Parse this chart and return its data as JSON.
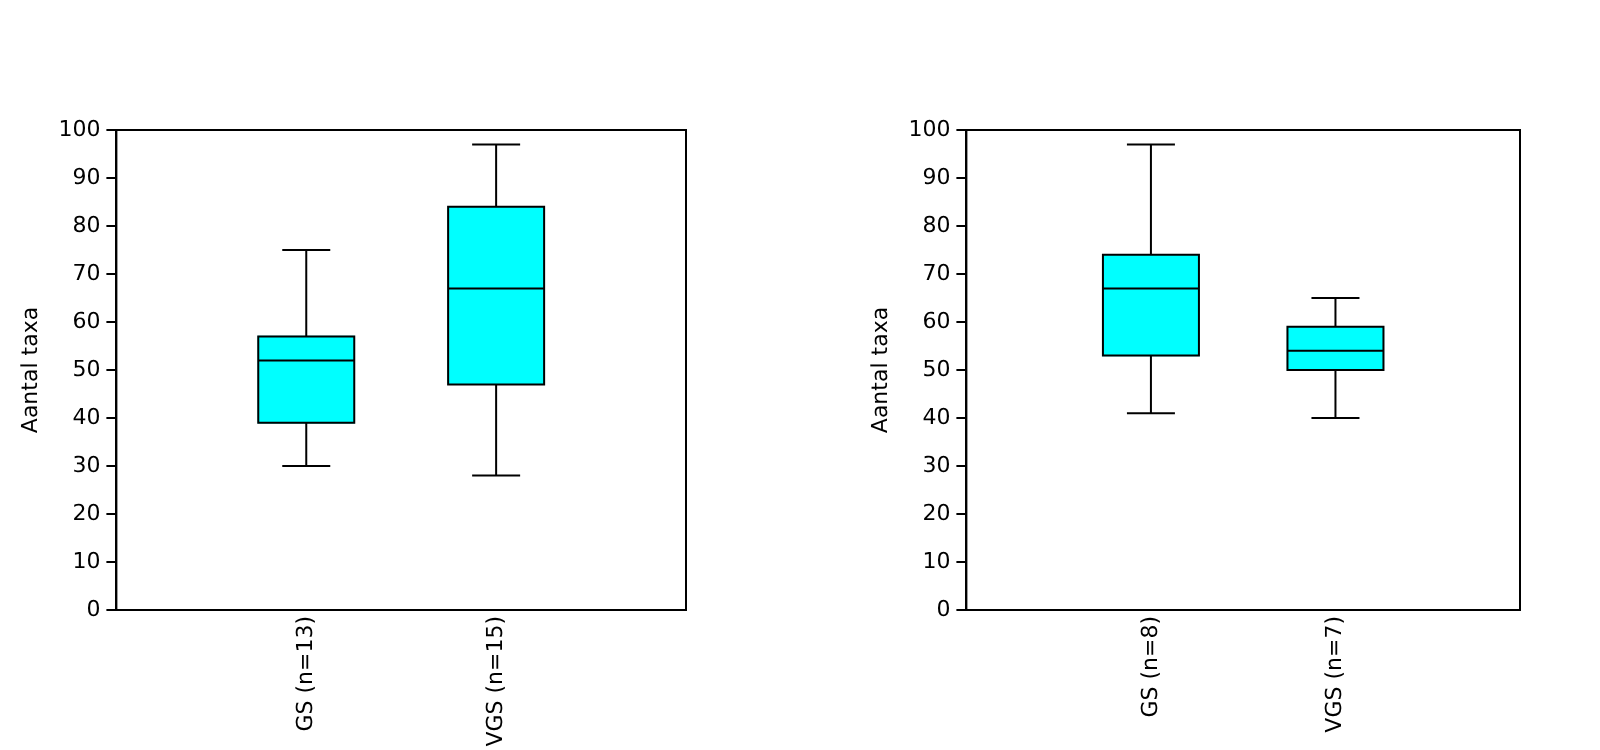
{
  "chart_data": [
    {
      "type": "box",
      "categories": [
        "GS (n=13)",
        "VGS (n=15)"
      ],
      "color": "#00ffff",
      "ylabel": "Aantal taxa",
      "ylim": [
        0,
        100
      ],
      "yticks": [
        0,
        10,
        20,
        30,
        40,
        50,
        60,
        70,
        80,
        90,
        100
      ],
      "grid": false,
      "boxes": [
        {
          "low": 30,
          "q1": 39,
          "median": 52,
          "q3": 57,
          "high": 75
        },
        {
          "low": 28,
          "q1": 47,
          "median": 67,
          "q3": 84,
          "high": 97
        }
      ]
    },
    {
      "type": "box",
      "categories": [
        "GS (n=8)",
        "VGS (n=7)"
      ],
      "color": "#00ffff",
      "ylabel": "Aantal taxa",
      "ylim": [
        0,
        100
      ],
      "yticks": [
        0,
        10,
        20,
        30,
        40,
        50,
        60,
        70,
        80,
        90,
        100
      ],
      "grid": false,
      "boxes": [
        {
          "low": 41,
          "q1": 53,
          "median": 67,
          "q3": 74,
          "high": 97
        },
        {
          "low": 40,
          "q1": 50,
          "median": 54,
          "q3": 59,
          "high": 65
        }
      ]
    }
  ]
}
